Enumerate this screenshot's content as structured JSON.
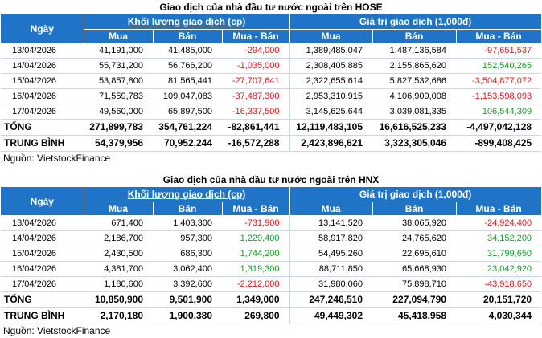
{
  "tables": [
    {
      "title": "Giao dịch của nhà đầu tư nước ngoài trên HOSE",
      "header": {
        "day": "Ngày",
        "volume_group": "Khối lượng giao dịch (cp)",
        "value_group": "Giá trị giao dịch (1,000đ)",
        "buy": "Mua",
        "sell": "Bán",
        "net": "Mua - Bán"
      },
      "rows": [
        {
          "day": "13/04/2026",
          "vol_buy": "41,191,000",
          "vol_sell": "41,485,000",
          "vol_net": "-294,000",
          "val_buy": "1,389,485,047",
          "val_sell": "1,487,136,584",
          "val_net": "-97,651,537"
        },
        {
          "day": "14/04/2026",
          "vol_buy": "55,731,200",
          "vol_sell": "56,766,200",
          "vol_net": "-1,035,000",
          "val_buy": "2,308,405,885",
          "val_sell": "2,155,865,620",
          "val_net": "152,540,265"
        },
        {
          "day": "15/04/2026",
          "vol_buy": "53,857,800",
          "vol_sell": "81,565,441",
          "vol_net": "-27,707,641",
          "val_buy": "2,322,655,614",
          "val_sell": "5,827,532,686",
          "val_net": "-3,504,877,072"
        },
        {
          "day": "16/04/2026",
          "vol_buy": "71,559,783",
          "vol_sell": "109,047,083",
          "vol_net": "-37,487,300",
          "val_buy": "2,953,310,915",
          "val_sell": "4,106,909,008",
          "val_net": "-1,153,598,093"
        },
        {
          "day": "17/04/2026",
          "vol_buy": "49,560,000",
          "vol_sell": "65,897,500",
          "vol_net": "-16,337,500",
          "val_buy": "3,145,625,644",
          "val_sell": "3,039,081,335",
          "val_net": "106,544,309"
        }
      ],
      "total": {
        "label": "TỔNG",
        "vol_buy": "271,899,783",
        "vol_sell": "354,761,224",
        "vol_net": "-82,861,441",
        "val_buy": "12,119,483,105",
        "val_sell": "16,616,525,233",
        "val_net": "-4,497,042,128"
      },
      "average": {
        "label": "TRUNG BÌNH",
        "vol_buy": "54,379,956",
        "vol_sell": "70,952,244",
        "vol_net": "-16,572,288",
        "val_buy": "2,423,896,621",
        "val_sell": "3,323,305,046",
        "val_net": "-899,408,425"
      },
      "source": "Nguồn: VietstockFinance"
    },
    {
      "title": "Giao dịch của nhà đầu tư nước ngoài trên HNX",
      "header": {
        "day": "Ngày",
        "volume_group": "Khối lượng giao dịch (cp)",
        "value_group": "Giá trị giao dịch (1,000đ)",
        "buy": "Mua",
        "sell": "Bán",
        "net": "Mua - Bán"
      },
      "rows": [
        {
          "day": "13/04/2026",
          "vol_buy": "671,400",
          "vol_sell": "1,403,300",
          "vol_net": "-731,900",
          "val_buy": "13,141,520",
          "val_sell": "38,065,920",
          "val_net": "-24,924,400"
        },
        {
          "day": "14/04/2026",
          "vol_buy": "2,186,700",
          "vol_sell": "957,300",
          "vol_net": "1,229,400",
          "val_buy": "58,917,820",
          "val_sell": "24,765,620",
          "val_net": "34,152,200"
        },
        {
          "day": "15/04/2026",
          "vol_buy": "2,430,500",
          "vol_sell": "686,300",
          "vol_net": "1,744,200",
          "val_buy": "54,495,260",
          "val_sell": "22,695,610",
          "val_net": "31,799,650"
        },
        {
          "day": "16/04/2026",
          "vol_buy": "4,381,700",
          "vol_sell": "3,062,400",
          "vol_net": "1,319,300",
          "val_buy": "88,711,850",
          "val_sell": "65,668,930",
          "val_net": "23,042,920"
        },
        {
          "day": "17/04/2026",
          "vol_buy": "1,180,600",
          "vol_sell": "3,392,600",
          "vol_net": "-2,212,000",
          "val_buy": "31,980,060",
          "val_sell": "75,898,710",
          "val_net": "-43,918,650"
        }
      ],
      "total": {
        "label": "TỔNG",
        "vol_buy": "10,850,900",
        "vol_sell": "9,501,900",
        "vol_net": "1,349,000",
        "val_buy": "247,246,510",
        "val_sell": "227,094,790",
        "val_net": "20,151,720"
      },
      "average": {
        "label": "TRUNG BÌNH",
        "vol_buy": "2,170,180",
        "vol_sell": "1,900,380",
        "vol_net": "269,800",
        "val_buy": "49,449,302",
        "val_sell": "45,418,958",
        "val_net": "4,030,344"
      },
      "source": "Nguồn: VietstockFinance"
    }
  ],
  "colors": {
    "header_bg": "#1f74c8",
    "negative": "#e8161b",
    "positive": "#1a9d2b"
  }
}
